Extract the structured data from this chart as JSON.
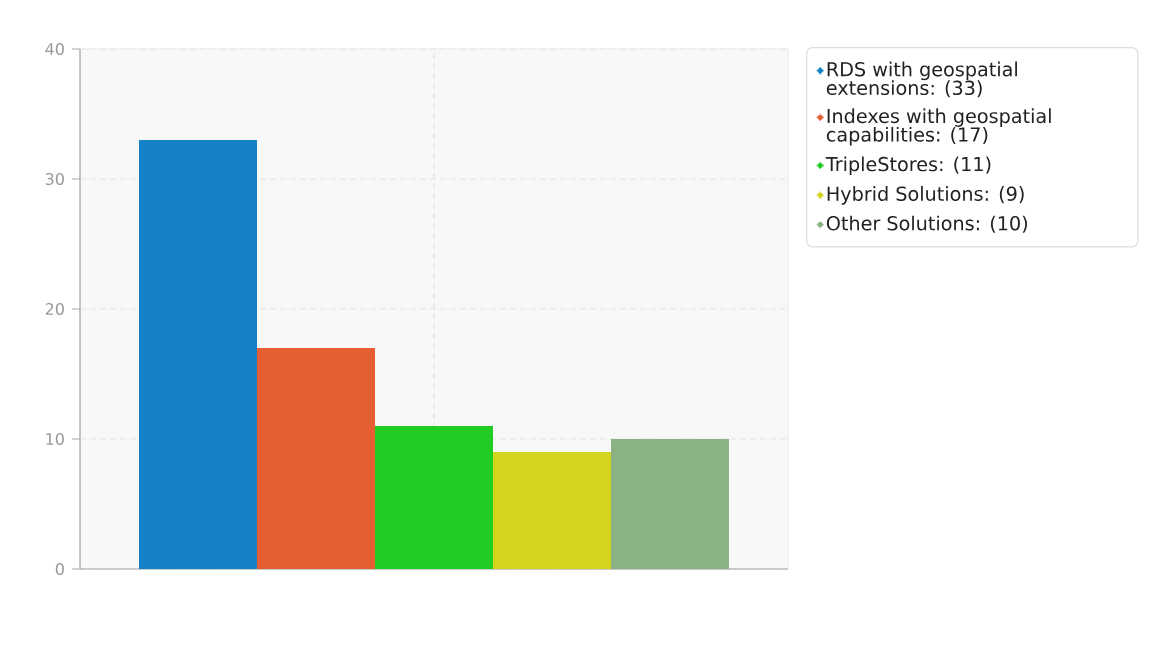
{
  "chart_data": {
    "type": "bar",
    "categories": [
      null
    ],
    "series": [
      {
        "name": "RDS with geospatial extensions: (33)",
        "color": "#1582c8",
        "values": [
          33
        ]
      },
      {
        "name": "Indexes with geospatial capabilities: (17)",
        "color": "#e65f33",
        "values": [
          17
        ]
      },
      {
        "name": "TripleStores: (11)",
        "color": "#21cd23",
        "values": [
          11
        ]
      },
      {
        "name": "Hybrid Solutions: (9)",
        "color": "#d3d41e",
        "values": [
          9
        ]
      },
      {
        "name": "Other Solutions: (10)",
        "color": "#8ab283",
        "values": [
          10
        ]
      }
    ],
    "ylim": [
      0,
      40
    ],
    "yticks": [
      0,
      10,
      20,
      30,
      40
    ],
    "grid": true,
    "legend": "top right"
  }
}
